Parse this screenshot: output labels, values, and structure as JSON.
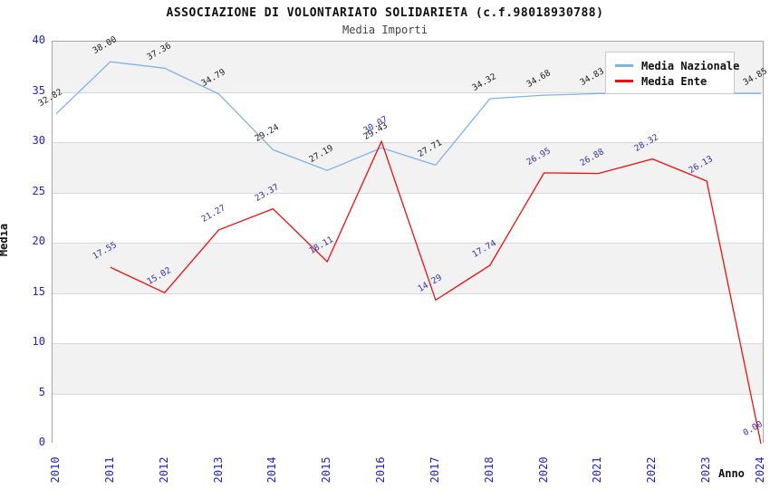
{
  "header": {
    "title": "ASSOCIAZIONE DI VOLONTARIATO SOLIDARIETA (c.f.98018930788)",
    "subtitle": "Media Importi"
  },
  "chart_data": {
    "type": "line",
    "categories": [
      "2010",
      "2011",
      "2012",
      "2013",
      "2014",
      "2015",
      "2016",
      "2017",
      "2018",
      "2020",
      "2021",
      "2022",
      "2023",
      "2024"
    ],
    "series": [
      {
        "name": "Media Nazionale",
        "color": "#7fb2e5",
        "label_color": "#222222",
        "values": [
          32.82,
          38.0,
          37.36,
          34.79,
          29.24,
          27.19,
          29.43,
          27.71,
          34.32,
          34.68,
          34.83,
          34.85,
          34.85,
          34.85
        ]
      },
      {
        "name": "Media Ente",
        "color": "#ee1111",
        "label_color": "#3333aa",
        "values": [
          null,
          17.55,
          15.02,
          21.27,
          23.37,
          18.11,
          30.07,
          14.29,
          17.74,
          26.95,
          26.88,
          28.32,
          26.13,
          0.0
        ]
      }
    ],
    "xlabel": "Anno",
    "ylabel": "Media",
    "ylim": [
      0,
      40
    ],
    "yticks": [
      0,
      5,
      10,
      15,
      20,
      25,
      30,
      35,
      40
    ],
    "grid": "horizontal, alternating shaded bands every 5 units",
    "legend_position": "top-right",
    "point_labels": "two decimals above each point, rotated"
  },
  "style": {
    "tick_color": "#2222cc",
    "band_color": "#f2f2f2",
    "grid_color": "#d9d9d9",
    "border_color": "#a6a6a6"
  }
}
